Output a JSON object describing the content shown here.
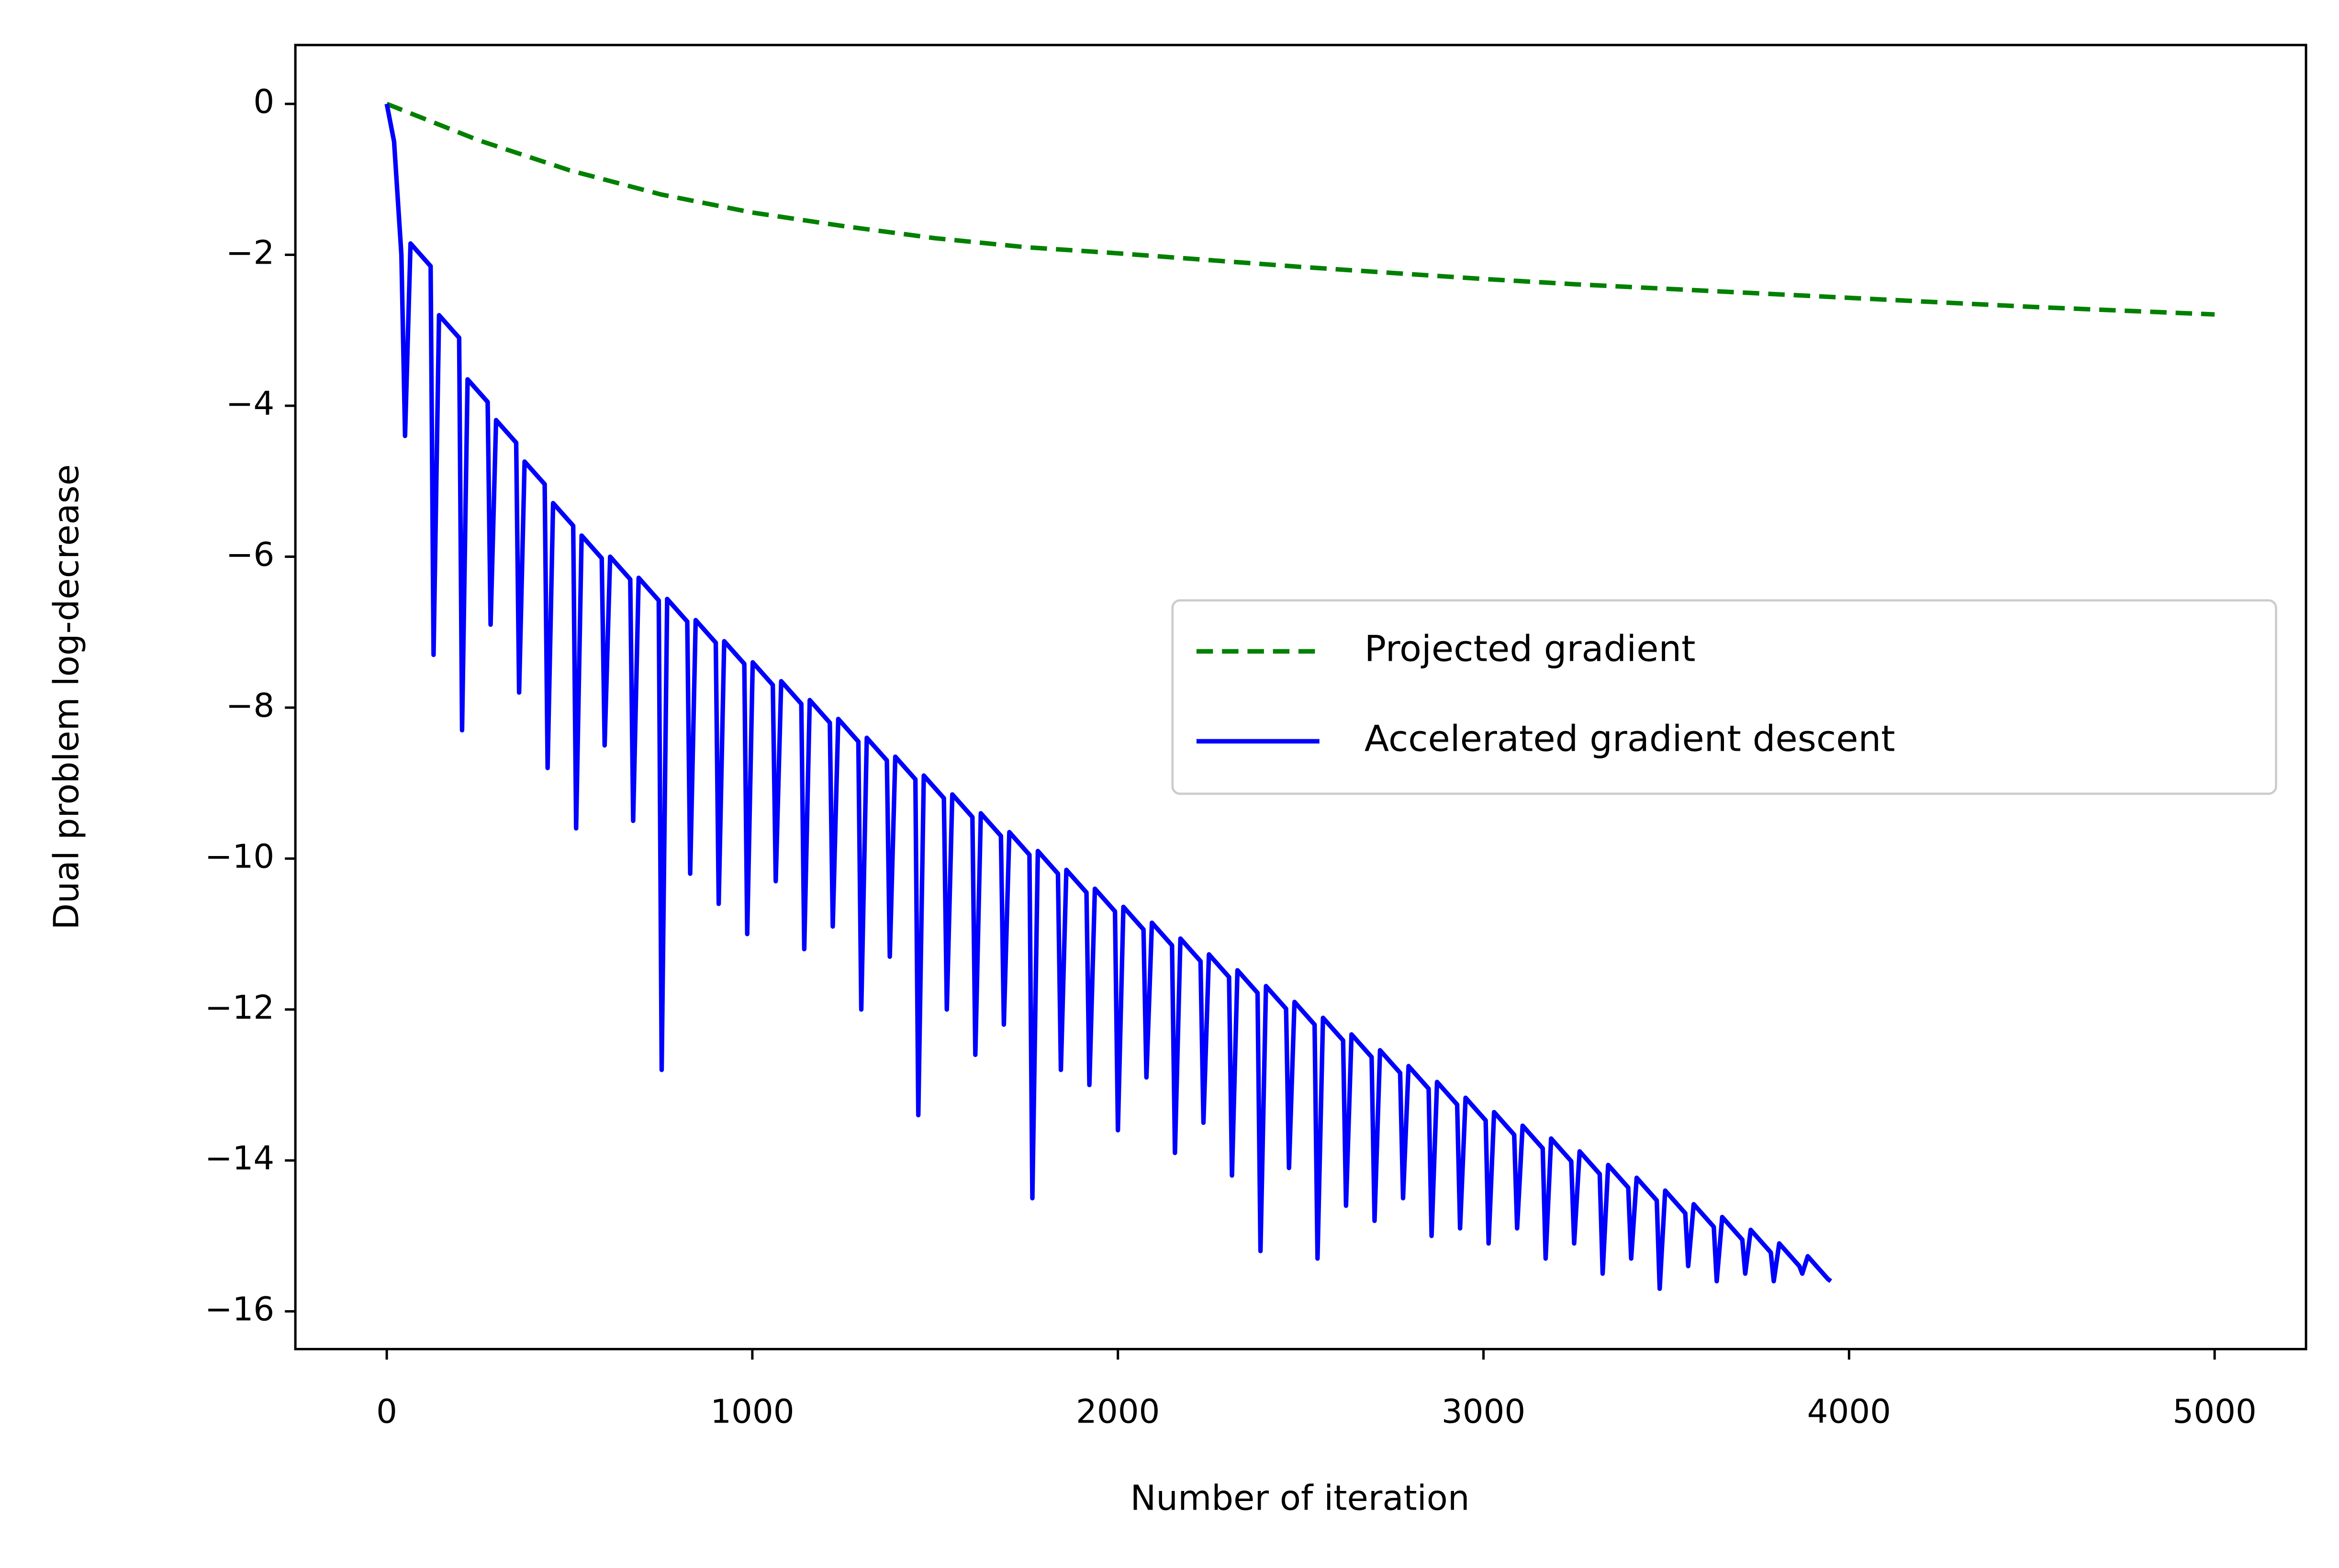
{
  "chart_data": {
    "type": "line",
    "xlabel": "Number of iteration",
    "ylabel": "Dual problem log-decrease",
    "xlim": [
      -250,
      5250
    ],
    "ylim": [
      -16.5,
      0.78
    ],
    "xticks": [
      0,
      1000,
      2000,
      3000,
      4000,
      5000
    ],
    "yticks": [
      0,
      {
        "value": -2,
        "label": "−2"
      },
      {
        "value": -4,
        "label": "−4"
      },
      {
        "value": -6,
        "label": "−6"
      },
      {
        "value": -8,
        "label": "−8"
      },
      {
        "value": -10,
        "label": "−10"
      },
      {
        "value": -12,
        "label": "−12"
      },
      {
        "value": -14,
        "label": "−14"
      },
      {
        "value": -16,
        "label": "−16"
      }
    ],
    "grid": false,
    "legend": "center right",
    "series": [
      {
        "name": "Projected gradient",
        "color": "#008000",
        "linestyle": "dashed",
        "x": [
          0,
          250,
          500,
          750,
          1000,
          1250,
          1500,
          1750,
          2000,
          2250,
          2500,
          2750,
          3000,
          3250,
          3500,
          3750,
          4000,
          4250,
          4500,
          4750,
          5000
        ],
        "values": [
          0,
          -0.48,
          -0.88,
          -1.2,
          -1.44,
          -1.62,
          -1.78,
          -1.9,
          -1.98,
          -2.07,
          -2.16,
          -2.24,
          -2.32,
          -2.39,
          -2.45,
          -2.51,
          -2.57,
          -2.63,
          -2.69,
          -2.74,
          -2.79
        ]
      },
      {
        "name": "Accelerated gradient descent",
        "color": "#0000ff",
        "linestyle": "solid",
        "x": [
          0,
          20,
          40,
          50,
          65,
          120,
          128,
          143,
          198,
          206,
          221,
          276,
          284,
          299,
          354,
          362,
          377,
          432,
          440,
          455,
          510,
          518,
          533,
          588,
          596,
          611,
          666,
          674,
          689,
          744,
          752,
          767,
          822,
          830,
          845,
          900,
          908,
          923,
          978,
          986,
          1001,
          1056,
          1064,
          1079,
          1134,
          1142,
          1157,
          1212,
          1220,
          1235,
          1290,
          1298,
          1313,
          1368,
          1376,
          1391,
          1446,
          1454,
          1469,
          1524,
          1532,
          1547,
          1602,
          1610,
          1625,
          1680,
          1688,
          1703,
          1758,
          1766,
          1781,
          1836,
          1844,
          1859,
          1914,
          1922,
          1937,
          1992,
          2000,
          2015,
          2070,
          2078,
          2093,
          2148,
          2156,
          2171,
          2226,
          2234,
          2249,
          2304,
          2312,
          2327,
          2382,
          2390,
          2405,
          2460,
          2468,
          2483,
          2538,
          2546,
          2561,
          2616,
          2624,
          2639,
          2694,
          2702,
          2717,
          2772,
          2780,
          2795,
          2850,
          2858,
          2873,
          2928,
          2936,
          2951,
          3006,
          3014,
          3029,
          3084,
          3092,
          3107,
          3162,
          3170,
          3185,
          3240,
          3248,
          3263,
          3318,
          3326,
          3341,
          3396,
          3404,
          3419,
          3474,
          3482,
          3497,
          3552,
          3560,
          3575,
          3630,
          3638,
          3653,
          3708,
          3716,
          3731,
          3786,
          3794,
          3809,
          3864,
          3872,
          3887,
          3942,
          3950
        ],
        "values": [
          0,
          -0.5,
          -2.0,
          -4.4,
          -1.85,
          -2.15,
          -7.3,
          -2.8,
          -3.1,
          -8.3,
          -3.65,
          -3.95,
          -6.9,
          -4.19,
          -4.49,
          -7.8,
          -4.74,
          -5.04,
          -8.8,
          -5.29,
          -5.59,
          -9.6,
          -5.72,
          -6.02,
          -8.5,
          -6.0,
          -6.3,
          -9.5,
          -6.28,
          -6.58,
          -12.8,
          -6.56,
          -6.86,
          -10.2,
          -6.84,
          -7.14,
          -10.6,
          -7.12,
          -7.42,
          -11.0,
          -7.4,
          -7.7,
          -10.3,
          -7.65,
          -7.95,
          -11.2,
          -7.9,
          -8.2,
          -10.9,
          -8.15,
          -8.45,
          -12.0,
          -8.4,
          -8.7,
          -11.3,
          -8.65,
          -8.95,
          -13.4,
          -8.9,
          -9.2,
          -12.0,
          -9.15,
          -9.45,
          -12.6,
          -9.4,
          -9.7,
          -12.2,
          -9.65,
          -9.95,
          -14.5,
          -9.9,
          -10.2,
          -12.8,
          -10.15,
          -10.45,
          -13.0,
          -10.4,
          -10.7,
          -13.6,
          -10.64,
          -10.94,
          -12.9,
          -10.85,
          -11.15,
          -13.9,
          -11.06,
          -11.36,
          -13.5,
          -11.27,
          -11.57,
          -14.2,
          -11.48,
          -11.78,
          -15.2,
          -11.69,
          -11.99,
          -14.1,
          -11.9,
          -12.2,
          -15.3,
          -12.11,
          -12.41,
          -14.6,
          -12.33,
          -12.63,
          -14.8,
          -12.54,
          -12.84,
          -14.5,
          -12.75,
          -13.05,
          -15.0,
          -12.96,
          -13.26,
          -14.9,
          -13.17,
          -13.47,
          -15.1,
          -13.36,
          -13.66,
          -14.9,
          -13.54,
          -13.84,
          -15.3,
          -13.71,
          -14.01,
          -15.1,
          -13.88,
          -14.18,
          -15.5,
          -14.06,
          -14.36,
          -15.3,
          -14.23,
          -14.53,
          -15.7,
          -14.4,
          -14.7,
          -15.4,
          -14.58,
          -14.88,
          -15.6,
          -14.75,
          -15.05,
          -15.5,
          -14.92,
          -15.22,
          -15.6,
          -15.1,
          -15.4,
          -15.5,
          -15.27,
          -15.57,
          -15.6
        ]
      }
    ]
  }
}
